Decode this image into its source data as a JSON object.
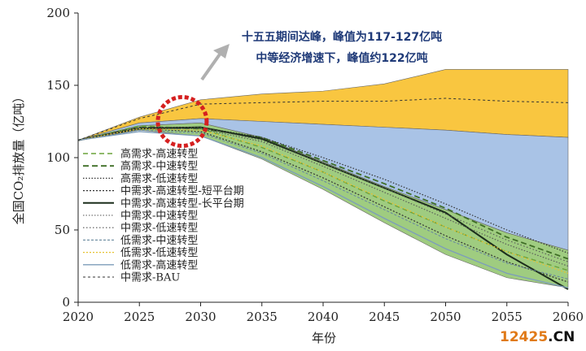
{
  "chart_data": {
    "type": "area",
    "xlabel": "年份",
    "ylabel": "全国CO₂排放量（亿吨）",
    "xlim": [
      2020,
      2060
    ],
    "ylim": [
      0,
      200
    ],
    "x_ticks": [
      "2020",
      "2025",
      "2030",
      "2035",
      "2040",
      "2045",
      "2050",
      "2055",
      "2060"
    ],
    "y_ticks": [
      "0",
      "50",
      "100",
      "150",
      "200"
    ],
    "grid": false,
    "legend_position": "bottom-left",
    "bands": [
      {
        "color": "#f9c640",
        "upper": [
          [
            2020,
            112
          ],
          [
            2025,
            128
          ],
          [
            2030,
            140
          ],
          [
            2035,
            144
          ],
          [
            2040,
            146
          ],
          [
            2045,
            151
          ],
          [
            2050,
            161
          ],
          [
            2055,
            161
          ],
          [
            2060,
            161
          ]
        ],
        "lower": [
          [
            2020,
            112
          ],
          [
            2025,
            124
          ],
          [
            2030,
            127
          ],
          [
            2035,
            125
          ],
          [
            2040,
            123
          ],
          [
            2045,
            121
          ],
          [
            2050,
            119
          ],
          [
            2055,
            116
          ],
          [
            2060,
            114
          ]
        ]
      },
      {
        "color": "#a9c3e6",
        "upper": [
          [
            2020,
            112
          ],
          [
            2025,
            124
          ],
          [
            2030,
            127
          ],
          [
            2035,
            125
          ],
          [
            2040,
            123
          ],
          [
            2045,
            121
          ],
          [
            2050,
            119
          ],
          [
            2055,
            116
          ],
          [
            2060,
            114
          ]
        ],
        "lower": [
          [
            2020,
            112
          ],
          [
            2025,
            122
          ],
          [
            2030,
            124
          ],
          [
            2035,
            114
          ],
          [
            2040,
            97
          ],
          [
            2045,
            80
          ],
          [
            2050,
            64
          ],
          [
            2055,
            48
          ],
          [
            2060,
            36
          ]
        ]
      },
      {
        "color": "#9fcc80",
        "upper": [
          [
            2020,
            112
          ],
          [
            2025,
            122
          ],
          [
            2030,
            124
          ],
          [
            2035,
            114
          ],
          [
            2040,
            97
          ],
          [
            2045,
            80
          ],
          [
            2050,
            64
          ],
          [
            2055,
            48
          ],
          [
            2060,
            36
          ]
        ],
        "lower": [
          [
            2020,
            112
          ],
          [
            2025,
            119
          ],
          [
            2030,
            115
          ],
          [
            2035,
            99
          ],
          [
            2040,
            78
          ],
          [
            2045,
            55
          ],
          [
            2050,
            33
          ],
          [
            2055,
            17
          ],
          [
            2060,
            10
          ]
        ]
      }
    ],
    "series": [
      {
        "name": "高需求-高速转型",
        "color": "#6aa33a",
        "dash": "6,4",
        "width": 1.4,
        "points": [
          [
            2020,
            112
          ],
          [
            2025,
            122
          ],
          [
            2030,
            120
          ],
          [
            2035,
            107
          ],
          [
            2040,
            90
          ],
          [
            2045,
            70
          ],
          [
            2050,
            52
          ],
          [
            2055,
            35
          ],
          [
            2060,
            22
          ]
        ]
      },
      {
        "name": "高需求-中速转型",
        "color": "#3f6e26",
        "dash": "7,4",
        "width": 1.8,
        "points": [
          [
            2020,
            112
          ],
          [
            2025,
            121
          ],
          [
            2030,
            120
          ],
          [
            2035,
            114
          ],
          [
            2040,
            98
          ],
          [
            2045,
            82
          ],
          [
            2050,
            65
          ],
          [
            2055,
            45
          ],
          [
            2060,
            30
          ]
        ]
      },
      {
        "name": "高需求-低速转型",
        "color": "#333333",
        "dash": "1.5,2",
        "width": 1.2,
        "points": [
          [
            2020,
            112
          ],
          [
            2025,
            121
          ],
          [
            2030,
            121
          ],
          [
            2035,
            114
          ],
          [
            2040,
            100
          ],
          [
            2045,
            85
          ],
          [
            2050,
            68
          ],
          [
            2055,
            50
          ],
          [
            2060,
            34
          ]
        ]
      },
      {
        "name": "中需求-高速转型-短平台期",
        "color": "#333333",
        "dash": "2,2",
        "width": 1.2,
        "points": [
          [
            2020,
            112
          ],
          [
            2025,
            120
          ],
          [
            2030,
            118
          ],
          [
            2035,
            104
          ],
          [
            2040,
            86
          ],
          [
            2045,
            66
          ],
          [
            2050,
            46
          ],
          [
            2055,
            28
          ],
          [
            2060,
            14
          ]
        ]
      },
      {
        "name": "中需求-高速转型-长平台期",
        "color": "#1c2e1c",
        "dash": "",
        "width": 2.0,
        "points": [
          [
            2020,
            112
          ],
          [
            2025,
            120
          ],
          [
            2030,
            121
          ],
          [
            2035,
            113
          ],
          [
            2040,
            96
          ],
          [
            2045,
            79
          ],
          [
            2050,
            62
          ],
          [
            2055,
            33
          ],
          [
            2060,
            9
          ]
        ]
      },
      {
        "name": "中需求-中速转型",
        "color": "#555555",
        "dash": "1.5,2",
        "width": 1.1,
        "points": [
          [
            2020,
            112
          ],
          [
            2025,
            120
          ],
          [
            2030,
            120
          ],
          [
            2035,
            111
          ],
          [
            2040,
            94
          ],
          [
            2045,
            76
          ],
          [
            2050,
            58
          ],
          [
            2055,
            40
          ],
          [
            2060,
            25
          ]
        ]
      },
      {
        "name": "中需求-低速转型",
        "color": "#555555",
        "dash": "1.5,2.5",
        "width": 1.1,
        "points": [
          [
            2020,
            112
          ],
          [
            2025,
            121
          ],
          [
            2030,
            121
          ],
          [
            2035,
            112
          ],
          [
            2040,
            96
          ],
          [
            2045,
            79
          ],
          [
            2050,
            61
          ],
          [
            2055,
            43
          ],
          [
            2060,
            28
          ]
        ]
      },
      {
        "name": "低需求-中速转型",
        "color": "#6a8a9e",
        "dash": "3,2",
        "width": 1.1,
        "points": [
          [
            2020,
            112
          ],
          [
            2025,
            119
          ],
          [
            2030,
            117
          ],
          [
            2035,
            103
          ],
          [
            2040,
            84
          ],
          [
            2045,
            64
          ],
          [
            2050,
            44
          ],
          [
            2055,
            27
          ],
          [
            2060,
            16
          ]
        ]
      },
      {
        "name": "低需求-低速转型",
        "color": "#e6c232",
        "dash": "2,2",
        "width": 1.2,
        "points": [
          [
            2020,
            112
          ],
          [
            2025,
            120
          ],
          [
            2030,
            119
          ],
          [
            2035,
            108
          ],
          [
            2040,
            90
          ],
          [
            2045,
            71
          ],
          [
            2050,
            52
          ],
          [
            2055,
            35
          ],
          [
            2060,
            20
          ]
        ]
      },
      {
        "name": "低需求-高速转型",
        "color": "#7d9dba",
        "dash": "",
        "width": 1.3,
        "points": [
          [
            2020,
            112
          ],
          [
            2025,
            118
          ],
          [
            2030,
            115
          ],
          [
            2035,
            100
          ],
          [
            2040,
            80
          ],
          [
            2045,
            58
          ],
          [
            2050,
            37
          ],
          [
            2055,
            20
          ],
          [
            2060,
            10
          ]
        ]
      },
      {
        "name": "中需求-BAU",
        "color": "#333333",
        "dash": "3,3",
        "width": 1.0,
        "points": [
          [
            2020,
            112
          ],
          [
            2025,
            127
          ],
          [
            2030,
            137
          ],
          [
            2035,
            138
          ],
          [
            2040,
            139
          ],
          [
            2045,
            139
          ],
          [
            2050,
            141
          ],
          [
            2055,
            139
          ],
          [
            2060,
            138
          ]
        ]
      }
    ],
    "annotations": [
      "十五五期间达峰，峰值为117-127亿吨",
      "中等经济增速下，峰值约122亿吨"
    ],
    "highlight_circle": {
      "x": 2028.5,
      "y": 125
    }
  },
  "watermark": {
    "digits": "12425",
    "suffix": ".CN",
    "color_digits": "#e07a18",
    "color_suffix": "#111111"
  }
}
